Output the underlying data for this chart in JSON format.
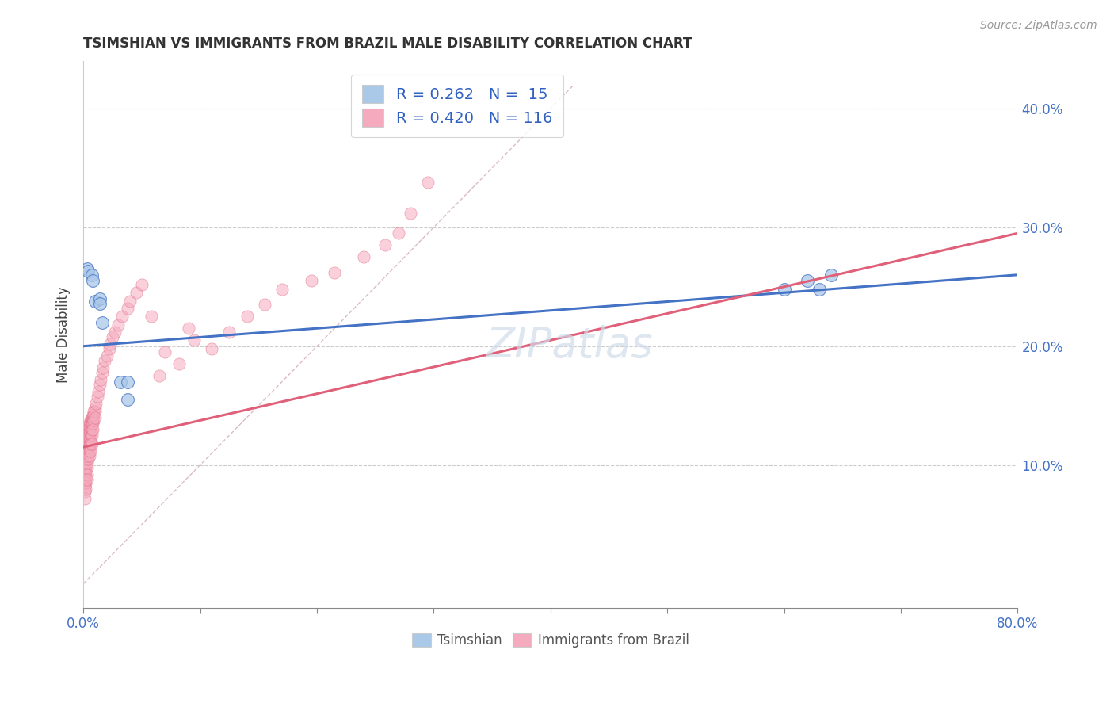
{
  "title": "TSIMSHIAN VS IMMIGRANTS FROM BRAZIL MALE DISABILITY CORRELATION CHART",
  "source": "Source: ZipAtlas.com",
  "ylabel": "Male Disability",
  "xlim": [
    0.0,
    0.8
  ],
  "ylim": [
    -0.02,
    0.44
  ],
  "xtick_vals": [
    0.0,
    0.1,
    0.2,
    0.3,
    0.4,
    0.5,
    0.6,
    0.7,
    0.8
  ],
  "xtick_show": [
    "0.0%",
    "",
    "",
    "",
    "",
    "",
    "",
    "",
    "80.0%"
  ],
  "yticks_right": [
    0.1,
    0.2,
    0.3,
    0.4
  ],
  "yticklabels_right": [
    "10.0%",
    "20.0%",
    "30.0%",
    "40.0%"
  ],
  "legend_entry1": "R = 0.262   N =  15",
  "legend_entry2": "R = 0.420   N = 116",
  "color_tsimshian": "#aac8e8",
  "color_brazil": "#f5aabe",
  "color_line_tsimshian": "#4472c4",
  "color_line_brazil": "#e0607a",
  "color_diag": "#d4b0bc",
  "background_color": "#ffffff",
  "grid_color": "#cccccc",
  "tsimshian_x": [
    0.003,
    0.004,
    0.007,
    0.008,
    0.01,
    0.014,
    0.014,
    0.016,
    0.032,
    0.038,
    0.038,
    0.6,
    0.62,
    0.63,
    0.64
  ],
  "tsimshian_y": [
    0.265,
    0.263,
    0.26,
    0.255,
    0.238,
    0.24,
    0.236,
    0.22,
    0.17,
    0.17,
    0.155,
    0.248,
    0.255,
    0.248,
    0.26
  ],
  "brazil_x": [
    0.001,
    0.001,
    0.001,
    0.001,
    0.001,
    0.001,
    0.001,
    0.001,
    0.001,
    0.001,
    0.001,
    0.002,
    0.002,
    0.002,
    0.002,
    0.002,
    0.002,
    0.002,
    0.002,
    0.002,
    0.002,
    0.002,
    0.002,
    0.002,
    0.002,
    0.003,
    0.003,
    0.003,
    0.003,
    0.003,
    0.003,
    0.003,
    0.003,
    0.003,
    0.003,
    0.003,
    0.003,
    0.003,
    0.004,
    0.004,
    0.004,
    0.004,
    0.004,
    0.004,
    0.004,
    0.004,
    0.004,
    0.005,
    0.005,
    0.005,
    0.005,
    0.005,
    0.005,
    0.005,
    0.005,
    0.005,
    0.006,
    0.006,
    0.006,
    0.006,
    0.006,
    0.006,
    0.006,
    0.007,
    0.007,
    0.007,
    0.007,
    0.007,
    0.007,
    0.008,
    0.008,
    0.008,
    0.008,
    0.009,
    0.009,
    0.009,
    0.01,
    0.01,
    0.01,
    0.011,
    0.012,
    0.013,
    0.014,
    0.015,
    0.016,
    0.017,
    0.018,
    0.02,
    0.022,
    0.023,
    0.025,
    0.027,
    0.03,
    0.033,
    0.038,
    0.04,
    0.045,
    0.05,
    0.058,
    0.065,
    0.07,
    0.082,
    0.09,
    0.095,
    0.11,
    0.125,
    0.14,
    0.155,
    0.17,
    0.195,
    0.215,
    0.24,
    0.258,
    0.27,
    0.28,
    0.295
  ],
  "brazil_y": [
    0.11,
    0.105,
    0.102,
    0.098,
    0.095,
    0.092,
    0.088,
    0.085,
    0.082,
    0.078,
    0.072,
    0.125,
    0.12,
    0.118,
    0.115,
    0.112,
    0.108,
    0.105,
    0.102,
    0.098,
    0.095,
    0.092,
    0.088,
    0.085,
    0.08,
    0.13,
    0.128,
    0.125,
    0.122,
    0.118,
    0.115,
    0.112,
    0.108,
    0.105,
    0.102,
    0.098,
    0.092,
    0.088,
    0.132,
    0.128,
    0.125,
    0.122,
    0.118,
    0.115,
    0.112,
    0.108,
    0.105,
    0.135,
    0.132,
    0.128,
    0.125,
    0.122,
    0.118,
    0.115,
    0.112,
    0.108,
    0.138,
    0.135,
    0.132,
    0.128,
    0.122,
    0.118,
    0.112,
    0.14,
    0.138,
    0.135,
    0.13,
    0.125,
    0.118,
    0.142,
    0.138,
    0.135,
    0.13,
    0.145,
    0.142,
    0.138,
    0.148,
    0.145,
    0.14,
    0.152,
    0.158,
    0.162,
    0.168,
    0.172,
    0.178,
    0.182,
    0.188,
    0.192,
    0.198,
    0.202,
    0.208,
    0.212,
    0.218,
    0.225,
    0.232,
    0.238,
    0.245,
    0.252,
    0.225,
    0.175,
    0.195,
    0.185,
    0.215,
    0.205,
    0.198,
    0.212,
    0.225,
    0.235,
    0.248,
    0.255,
    0.262,
    0.275,
    0.285,
    0.295,
    0.312,
    0.338
  ],
  "tsimshian_line_x": [
    0.0,
    0.8
  ],
  "tsimshian_line_y": [
    0.2,
    0.26
  ],
  "brazil_line_x": [
    0.0,
    0.8
  ],
  "brazil_line_y": [
    0.115,
    0.295
  ],
  "diag_line_x": [
    0.0,
    0.42
  ],
  "diag_line_y": [
    0.0,
    0.42
  ]
}
